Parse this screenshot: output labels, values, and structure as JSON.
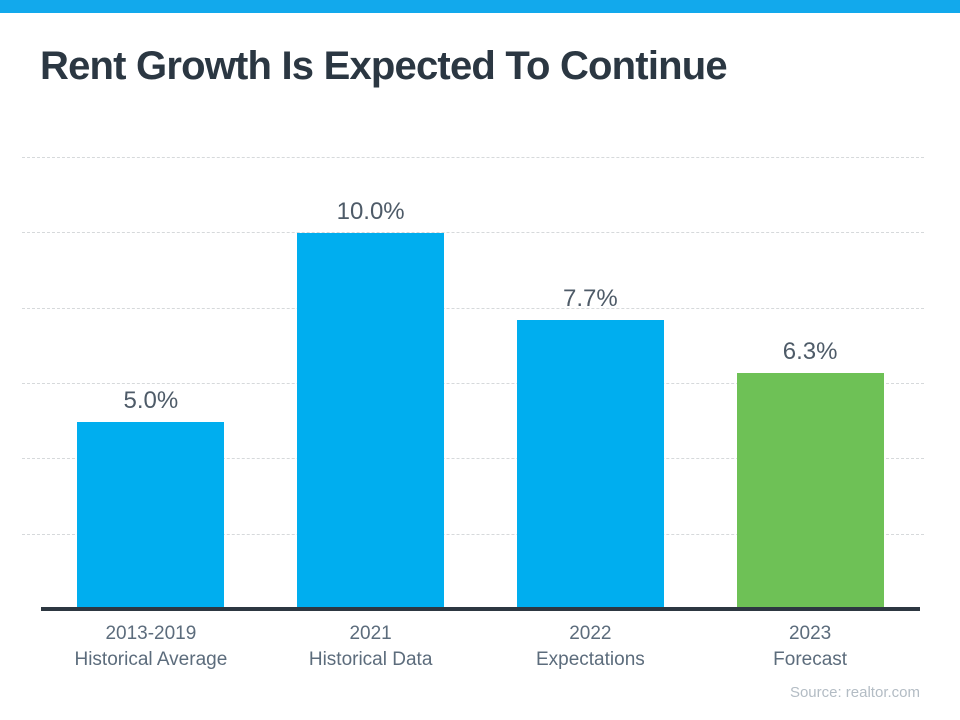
{
  "page": {
    "title": "Rent Growth Is Expected To Continue",
    "source_note": "Source: realtor.com"
  },
  "colors": {
    "accent_bar": "#12A9EC",
    "bar_blue": "#00AEEF",
    "bar_green": "#6EC156",
    "title_text": "#2B3742",
    "value_label_text": "#4E5B68",
    "category_label_text": "#5C6C7C",
    "source_text": "#B3BCC4",
    "axis_line": "#2D3741",
    "gridline": "#D6D9DB"
  },
  "chart_data": {
    "type": "bar",
    "title": "Rent Growth Is Expected To Continue",
    "categories": [
      "2013-2019 Historical Average",
      "2021 Historical Data",
      "2022 Expectations",
      "2023 Forecast"
    ],
    "values": [
      5.0,
      10.0,
      7.7,
      6.3
    ],
    "bars": [
      {
        "label_line1": "2013-2019",
        "label_line2": "Historical Average",
        "value": 5.0,
        "display_value": "5.0%",
        "color_key": "bar_blue"
      },
      {
        "label_line1": "2021",
        "label_line2": "Historical Data",
        "value": 10.0,
        "display_value": "10.0%",
        "color_key": "bar_blue"
      },
      {
        "label_line1": "2022",
        "label_line2": "Expectations",
        "value": 7.7,
        "display_value": "7.7%",
        "color_key": "bar_blue"
      },
      {
        "label_line1": "2023",
        "label_line2": "Forecast",
        "value": 6.3,
        "display_value": "6.3%",
        "color_key": "bar_green"
      }
    ],
    "ylim": [
      0,
      12
    ],
    "gridlines": [
      2,
      4,
      6,
      8,
      10,
      12
    ],
    "grid": true,
    "legend": false,
    "xlabel": "",
    "ylabel": "",
    "source": "Source: realtor.com"
  }
}
